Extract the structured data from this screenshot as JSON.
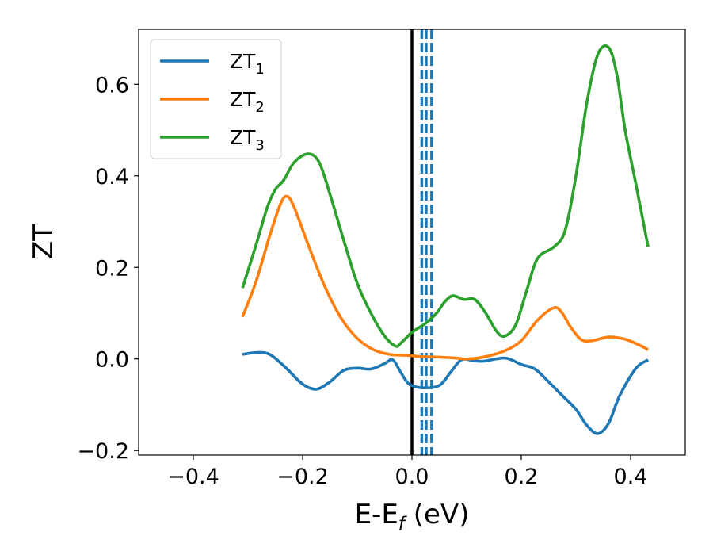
{
  "chart_data": {
    "type": "line",
    "xlabel": {
      "main": "E-E",
      "sub": "f",
      "tail": " (eV)"
    },
    "ylabel": "ZT",
    "xlim": [
      -0.5,
      0.5
    ],
    "ylim": [
      -0.21,
      0.72
    ],
    "xticks": [
      -0.4,
      -0.2,
      0.0,
      0.2,
      0.4
    ],
    "xtick_labels": [
      "−0.4",
      "−0.2",
      "0.0",
      "0.2",
      "0.4"
    ],
    "yticks": [
      -0.2,
      0.0,
      0.2,
      0.4,
      0.6
    ],
    "ytick_labels": [
      "−0.2",
      "0.0",
      "0.2",
      "0.4",
      "0.6"
    ],
    "grid": false,
    "legend_position": "top-left",
    "vertical_lines": [
      {
        "x": 0.0,
        "style": "solid",
        "color": "#000000"
      },
      {
        "x": 0.018,
        "style": "dashed",
        "color": "#1f77b4"
      },
      {
        "x": 0.026,
        "style": "dashed",
        "color": "#1f77b4"
      },
      {
        "x": 0.036,
        "style": "dashed",
        "color": "#1f77b4"
      }
    ],
    "series": [
      {
        "name": "ZT",
        "sub": "1",
        "color": "#1f77b4",
        "points": [
          [
            -0.31,
            0.01
          ],
          [
            -0.285,
            0.014
          ],
          [
            -0.26,
            0.01
          ],
          [
            -0.23,
            -0.02
          ],
          [
            -0.2,
            -0.055
          ],
          [
            -0.175,
            -0.066
          ],
          [
            -0.15,
            -0.05
          ],
          [
            -0.125,
            -0.025
          ],
          [
            -0.1,
            -0.02
          ],
          [
            -0.075,
            -0.022
          ],
          [
            -0.05,
            -0.01
          ],
          [
            -0.035,
            -0.002
          ],
          [
            -0.02,
            -0.03
          ],
          [
            -0.005,
            -0.055
          ],
          [
            0.02,
            -0.063
          ],
          [
            0.05,
            -0.058
          ],
          [
            0.07,
            -0.03
          ],
          [
            0.09,
            -0.002
          ],
          [
            0.11,
            -0.003
          ],
          [
            0.13,
            -0.005
          ],
          [
            0.17,
            0.002
          ],
          [
            0.2,
            -0.012
          ],
          [
            0.225,
            -0.022
          ],
          [
            0.25,
            -0.05
          ],
          [
            0.275,
            -0.08
          ],
          [
            0.3,
            -0.11
          ],
          [
            0.32,
            -0.145
          ],
          [
            0.34,
            -0.163
          ],
          [
            0.36,
            -0.14
          ],
          [
            0.38,
            -0.08
          ],
          [
            0.41,
            -0.02
          ],
          [
            0.432,
            -0.002
          ]
        ]
      },
      {
        "name": "ZT",
        "sub": "2",
        "color": "#ff7f0e",
        "points": [
          [
            -0.31,
            0.092
          ],
          [
            -0.285,
            0.17
          ],
          [
            -0.26,
            0.27
          ],
          [
            -0.24,
            0.34
          ],
          [
            -0.228,
            0.355
          ],
          [
            -0.215,
            0.33
          ],
          [
            -0.19,
            0.25
          ],
          [
            -0.16,
            0.16
          ],
          [
            -0.13,
            0.09
          ],
          [
            -0.1,
            0.045
          ],
          [
            -0.07,
            0.02
          ],
          [
            -0.04,
            0.01
          ],
          [
            -0.01,
            0.008
          ],
          [
            0.02,
            0.005
          ],
          [
            0.05,
            0.004
          ],
          [
            0.08,
            0.002
          ],
          [
            0.1,
            0.0
          ],
          [
            0.13,
            0.004
          ],
          [
            0.17,
            0.018
          ],
          [
            0.2,
            0.04
          ],
          [
            0.23,
            0.085
          ],
          [
            0.26,
            0.112
          ],
          [
            0.275,
            0.1
          ],
          [
            0.29,
            0.07
          ],
          [
            0.31,
            0.042
          ],
          [
            0.33,
            0.04
          ],
          [
            0.36,
            0.048
          ],
          [
            0.39,
            0.043
          ],
          [
            0.42,
            0.028
          ],
          [
            0.432,
            0.02
          ]
        ]
      },
      {
        "name": "ZT",
        "sub": "3",
        "color": "#2ca02c",
        "points": [
          [
            -0.31,
            0.155
          ],
          [
            -0.285,
            0.25
          ],
          [
            -0.265,
            0.33
          ],
          [
            -0.25,
            0.37
          ],
          [
            -0.235,
            0.39
          ],
          [
            -0.215,
            0.43
          ],
          [
            -0.19,
            0.448
          ],
          [
            -0.17,
            0.43
          ],
          [
            -0.15,
            0.36
          ],
          [
            -0.125,
            0.26
          ],
          [
            -0.1,
            0.165
          ],
          [
            -0.075,
            0.1
          ],
          [
            -0.05,
            0.05
          ],
          [
            -0.03,
            0.028
          ],
          [
            -0.02,
            0.035
          ],
          [
            0.0,
            0.058
          ],
          [
            0.025,
            0.078
          ],
          [
            0.045,
            0.1
          ],
          [
            0.06,
            0.125
          ],
          [
            0.075,
            0.138
          ],
          [
            0.095,
            0.13
          ],
          [
            0.115,
            0.13
          ],
          [
            0.135,
            0.1
          ],
          [
            0.155,
            0.06
          ],
          [
            0.17,
            0.05
          ],
          [
            0.19,
            0.075
          ],
          [
            0.21,
            0.15
          ],
          [
            0.23,
            0.22
          ],
          [
            0.26,
            0.245
          ],
          [
            0.28,
            0.28
          ],
          [
            0.3,
            0.4
          ],
          [
            0.32,
            0.56
          ],
          [
            0.34,
            0.665
          ],
          [
            0.36,
            0.68
          ],
          [
            0.375,
            0.62
          ],
          [
            0.39,
            0.5
          ],
          [
            0.41,
            0.38
          ],
          [
            0.432,
            0.245
          ]
        ]
      }
    ]
  }
}
